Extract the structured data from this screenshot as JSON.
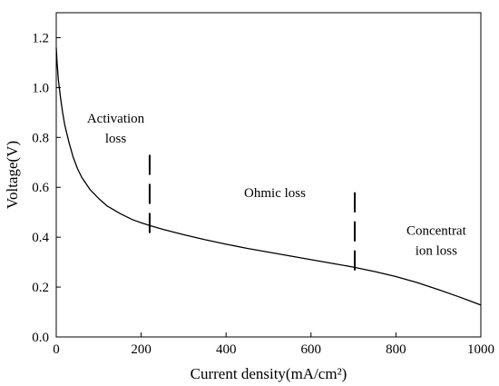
{
  "chart_data": {
    "type": "line",
    "xlabel": "Current density(mA/cm²)",
    "ylabel": "Voltage(V)",
    "xlim": [
      0,
      1000
    ],
    "ylim": [
      0,
      1.3
    ],
    "xticks": [
      0,
      200,
      400,
      600,
      800,
      1000
    ],
    "yticks": [
      0.0,
      0.2,
      0.4,
      0.6,
      0.8,
      1.0,
      1.2
    ],
    "ytick_labels": [
      "0.0",
      "0.2",
      "0.4",
      "0.6",
      "0.8",
      "1.0",
      "1.2"
    ],
    "grid": false,
    "series": [
      {
        "x": [
          0,
          2,
          5,
          10,
          15,
          20,
          30,
          40,
          50,
          60,
          80,
          100,
          120,
          150,
          180,
          200,
          220,
          250,
          300,
          350,
          400,
          450,
          500,
          550,
          600,
          650,
          700,
          750,
          800,
          850,
          900,
          950,
          1000
        ],
        "y": [
          1.16,
          1.1,
          1.03,
          0.96,
          0.9,
          0.85,
          0.78,
          0.72,
          0.675,
          0.64,
          0.59,
          0.555,
          0.525,
          0.495,
          0.47,
          0.458,
          0.447,
          0.432,
          0.41,
          0.39,
          0.372,
          0.355,
          0.34,
          0.325,
          0.31,
          0.295,
          0.28,
          0.262,
          0.242,
          0.218,
          0.19,
          0.16,
          0.128
        ],
        "color": "#000000"
      }
    ],
    "dividers": [
      {
        "x": 220,
        "y_from": 0.39,
        "y_to": 0.73
      },
      {
        "x": 703,
        "y_from": 0.25,
        "y_to": 0.58
      }
    ],
    "annotations": [
      {
        "lines": [
          "Activation",
          "loss"
        ],
        "x": 140,
        "y": 0.86
      },
      {
        "lines": [
          "Ohmic loss"
        ],
        "x": 515,
        "y": 0.56
      },
      {
        "lines": [
          "Concentrat",
          "ion loss"
        ],
        "x": 895,
        "y": 0.41
      }
    ]
  }
}
